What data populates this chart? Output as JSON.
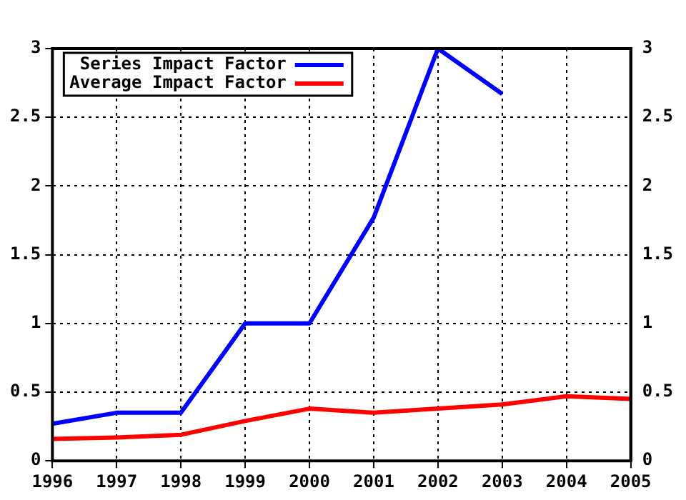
{
  "chart_data": {
    "type": "line",
    "x": [
      1996,
      1997,
      1998,
      1999,
      2000,
      2001,
      2002,
      2003,
      2004,
      2005
    ],
    "series": [
      {
        "name": "Series Impact Factor",
        "color": "#0000ff",
        "values": [
          0.27,
          0.35,
          0.35,
          1.0,
          1.0,
          1.77,
          3.0,
          2.67,
          null,
          null
        ]
      },
      {
        "name": "Average Impact Factor",
        "color": "#ff0000",
        "values": [
          0.16,
          0.17,
          0.19,
          0.29,
          0.38,
          0.35,
          0.38,
          0.41,
          0.47,
          0.45
        ]
      }
    ],
    "xlim": [
      1996,
      2005
    ],
    "xticks": [
      1996,
      1997,
      1998,
      1999,
      2000,
      2001,
      2002,
      2003,
      2004,
      2005
    ],
    "ylim": [
      0,
      3
    ],
    "yticks": [
      0,
      0.5,
      1,
      1.5,
      2,
      2.5,
      3
    ],
    "y2lim": [
      0,
      3
    ],
    "y2ticks": [
      0,
      0.5,
      1,
      1.5,
      2,
      2.5,
      3
    ],
    "grid": true,
    "legend": "top left",
    "marker": "none",
    "line_style": "solid"
  }
}
